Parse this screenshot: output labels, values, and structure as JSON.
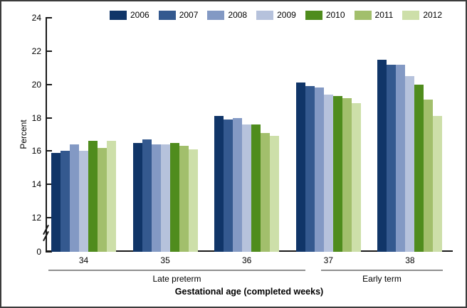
{
  "figure": {
    "background": "#ffffff",
    "border_color": "#3c3c3c",
    "axis_color": "#1a1a1a",
    "annotation_line_color": "#8f8f8f"
  },
  "chart_data": {
    "type": "bar",
    "title": "",
    "ylabel": "Percent",
    "xlabel": "Gestational age (completed weeks)",
    "categories": [
      "34",
      "35",
      "36",
      "37",
      "38"
    ],
    "series": [
      {
        "name": "2006",
        "color": "#103568",
        "values": [
          15.9,
          16.5,
          18.1,
          20.1,
          21.5
        ]
      },
      {
        "name": "2007",
        "color": "#34598f",
        "values": [
          16.0,
          16.7,
          17.9,
          19.9,
          21.2
        ]
      },
      {
        "name": "2008",
        "color": "#8399c4",
        "values": [
          16.4,
          16.4,
          18.0,
          19.8,
          21.2
        ]
      },
      {
        "name": "2009",
        "color": "#b6c2dc",
        "values": [
          16.0,
          16.4,
          17.6,
          19.4,
          20.5
        ]
      },
      {
        "name": "2010",
        "color": "#4f8c1d",
        "values": [
          16.6,
          16.5,
          17.6,
          19.3,
          20.0
        ]
      },
      {
        "name": "2011",
        "color": "#a2bf6c",
        "values": [
          16.2,
          16.3,
          17.1,
          19.2,
          19.1
        ]
      },
      {
        "name": "2012",
        "color": "#cddfa9",
        "values": [
          16.6,
          16.1,
          16.9,
          18.9,
          18.1
        ]
      }
    ],
    "y_ticks": [
      0,
      12,
      14,
      16,
      18,
      20,
      22,
      24
    ],
    "ylim": [
      0,
      24
    ],
    "axis_break_between": [
      0,
      12
    ],
    "grid": false,
    "legend_position": "top",
    "legend_entries": [
      "2006",
      "2007",
      "2008",
      "2009",
      "2010",
      "2011",
      "2012"
    ],
    "group_annotations": [
      {
        "label": "Late preterm",
        "span": [
          "34",
          "36"
        ]
      },
      {
        "label": "Early term",
        "span": [
          "37",
          "38"
        ]
      }
    ]
  }
}
